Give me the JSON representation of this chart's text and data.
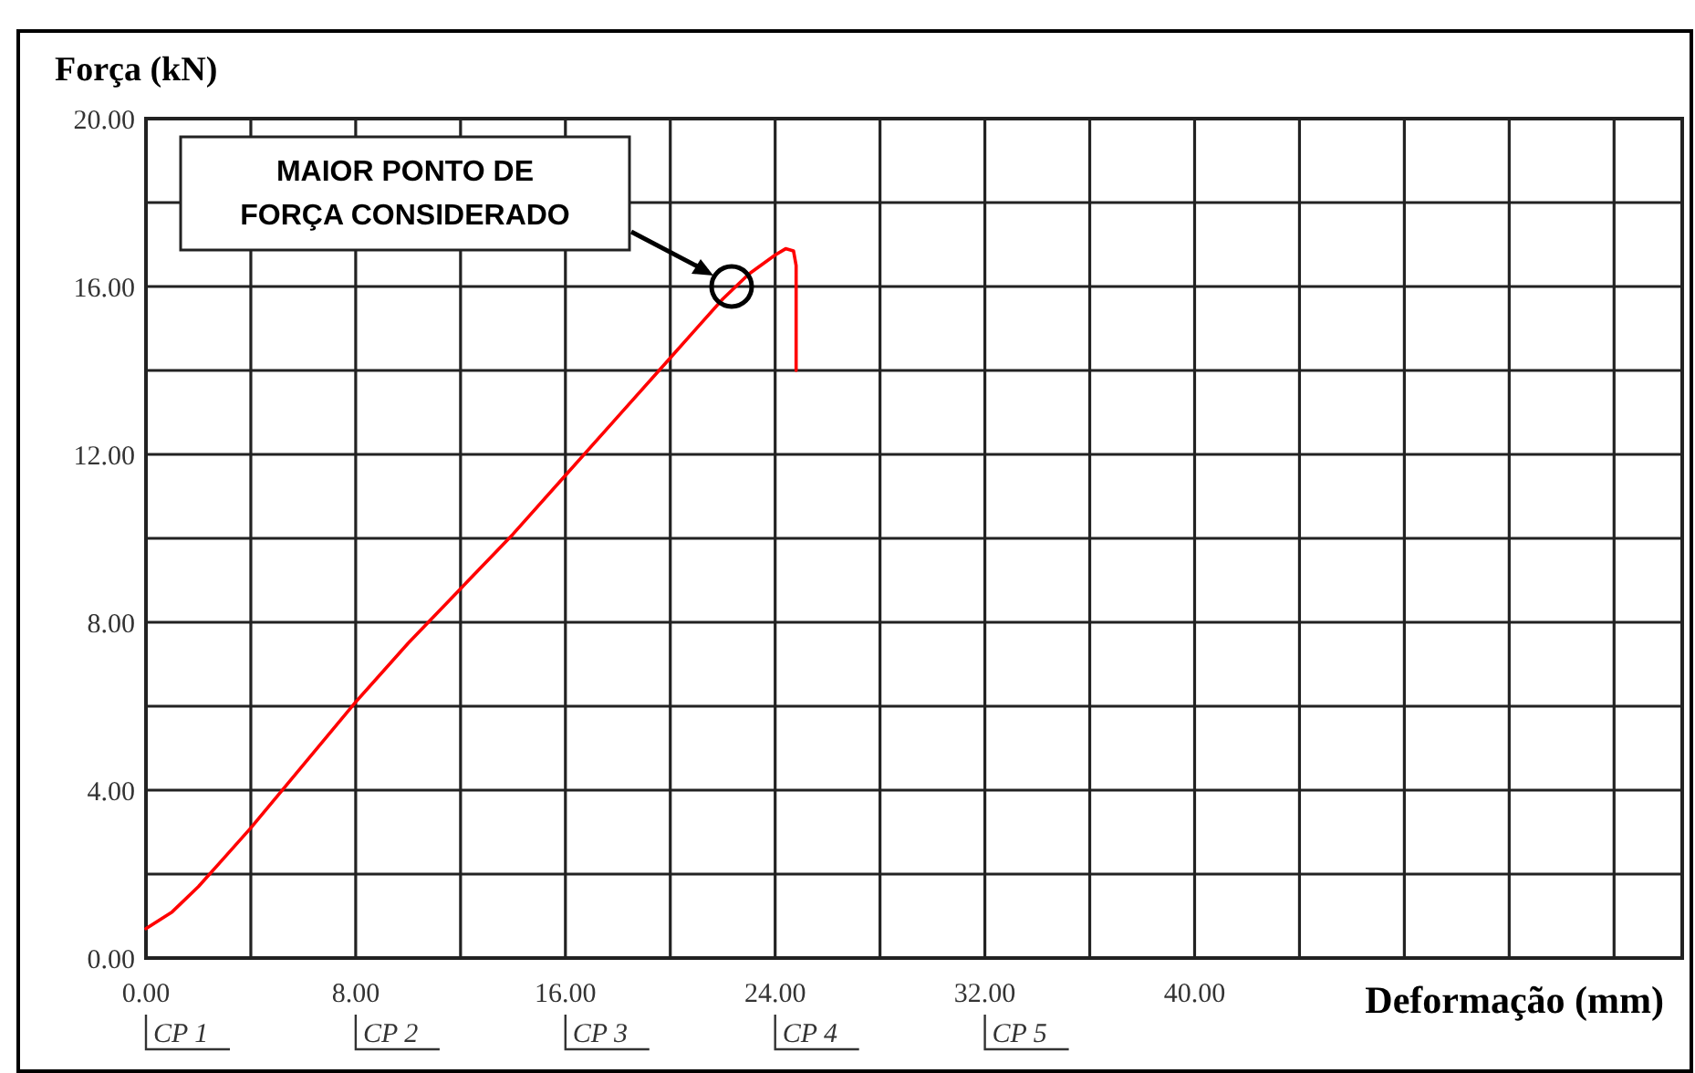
{
  "chart_data": {
    "type": "line",
    "ylabel": "Força (kN)",
    "xlabel": "Deformação (mm)",
    "xlim": [
      0,
      58.6
    ],
    "ylim": [
      0,
      20
    ],
    "xticks": [
      {
        "value": 0,
        "label": "0.00"
      },
      {
        "value": 4,
        "label": null
      },
      {
        "value": 8,
        "label": "8.00"
      },
      {
        "value": 12,
        "label": null
      },
      {
        "value": 16,
        "label": "16.00"
      },
      {
        "value": 20,
        "label": null
      },
      {
        "value": 24,
        "label": "24.00"
      },
      {
        "value": 28,
        "label": null
      },
      {
        "value": 32,
        "label": "32.00"
      },
      {
        "value": 36,
        "label": null
      },
      {
        "value": 40,
        "label": "40.00"
      },
      {
        "value": 44,
        "label": null
      },
      {
        "value": 48,
        "label": null
      },
      {
        "value": 52,
        "label": null
      },
      {
        "value": 56,
        "label": null
      }
    ],
    "yticks": [
      {
        "value": 0,
        "label": "0.00"
      },
      {
        "value": 2,
        "label": null
      },
      {
        "value": 4,
        "label": "4.00"
      },
      {
        "value": 6,
        "label": null
      },
      {
        "value": 8,
        "label": "8.00"
      },
      {
        "value": 10,
        "label": null
      },
      {
        "value": 12,
        "label": "12.00"
      },
      {
        "value": 14,
        "label": null
      },
      {
        "value": 16,
        "label": "16.00"
      },
      {
        "value": 18,
        "label": null
      },
      {
        "value": 20,
        "label": "20.00"
      }
    ],
    "grid": true,
    "marker": "none",
    "line_style": "solid",
    "series": [
      {
        "color": "#ff0000",
        "x": [
          0,
          1,
          2,
          3,
          4,
          6,
          8,
          10,
          12,
          14,
          16,
          18,
          20,
          22,
          23,
          24,
          24.4,
          24.7,
          24.8,
          24.8,
          24.8
        ],
        "values": [
          0.7,
          1.1,
          1.7,
          2.4,
          3.1,
          4.6,
          6.1,
          7.5,
          8.8,
          10.1,
          11.5,
          12.9,
          14.3,
          15.7,
          16.3,
          16.75,
          16.9,
          16.85,
          16.5,
          15.5,
          14.0
        ]
      }
    ],
    "annotations": [
      "MAIOR PONTO DE\nFORÇA CONSIDERADO",
      "CP 1",
      "CP 2",
      "CP 3",
      "CP 4",
      "CP 5"
    ]
  }
}
